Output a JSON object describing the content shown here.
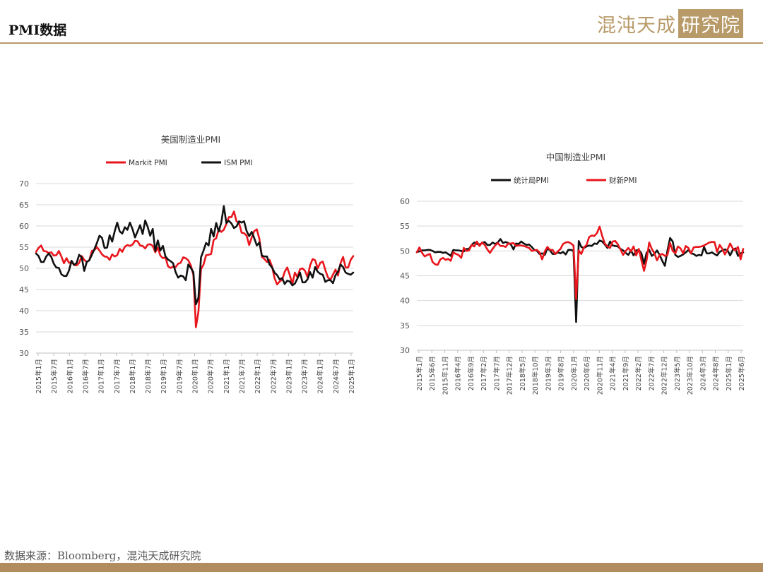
{
  "page": {
    "title": "PMI数据"
  },
  "logo": {
    "text_main": "混沌天成",
    "text_box": "研究院"
  },
  "footer": {
    "source": "数据来源：Bloomberg，混沌天成研究院"
  },
  "colors": {
    "accent": "#b89a68",
    "footer": "#b08c5e",
    "series_red": "#e8161c",
    "series_black": "#111111"
  },
  "chart_data": [
    {
      "type": "line",
      "title": "美国制造业PMI",
      "ylim": [
        30,
        70
      ],
      "yticks": [
        30,
        35,
        40,
        45,
        50,
        55,
        60,
        65,
        70
      ],
      "x_start": "2015-01",
      "x_end": "2025-06",
      "xtick_labels": [
        "2015年1月",
        "2015年7月",
        "2016年1月",
        "2016年7月",
        "2017年1月",
        "2017年7月",
        "2018年1月",
        "2018年7月",
        "2019年1月",
        "2019年7月",
        "2020年1月",
        "2020年7月",
        "2021年1月",
        "2021年7月",
        "2022年1月",
        "2022年7月",
        "2023年1月",
        "2023年7月",
        "2024年1月",
        "2024年7月",
        "2025年1月"
      ],
      "grid": true,
      "legend": "top",
      "series": [
        {
          "name": "Markit PMI",
          "color": "#e8161c",
          "values": [
            53.9,
            54.8,
            55.4,
            54.1,
            54.0,
            53.6,
            53.8,
            53.0,
            53.1,
            54.1,
            52.8,
            51.2,
            52.4,
            51.3,
            51.5,
            50.8,
            50.7,
            51.3,
            52.9,
            52.0,
            51.5,
            51.9,
            54.1,
            54.3,
            55.0,
            54.2,
            53.3,
            52.8,
            52.7,
            52.0,
            53.3,
            52.8,
            53.1,
            54.6,
            53.9,
            55.1,
            55.5,
            55.3,
            55.6,
            56.5,
            56.4,
            55.4,
            55.3,
            54.7,
            55.6,
            55.7,
            55.3,
            53.8,
            54.9,
            53.0,
            52.4,
            52.6,
            50.5,
            50.1,
            50.4,
            50.3,
            51.1,
            51.3,
            52.6,
            52.4,
            51.9,
            50.7,
            48.5,
            36.1,
            39.8,
            49.8,
            50.9,
            53.1,
            53.2,
            53.4,
            56.7,
            57.1,
            59.2,
            58.6,
            59.1,
            60.5,
            62.1,
            62.1,
            63.4,
            61.1,
            60.7,
            58.4,
            58.3,
            57.7,
            55.5,
            57.3,
            58.8,
            59.2,
            57.0,
            52.7,
            52.2,
            51.5,
            52.0,
            50.4,
            47.7,
            46.2,
            46.9,
            47.3,
            49.2,
            50.2,
            48.4,
            46.3,
            49.0,
            47.9,
            49.8,
            50.0,
            49.4,
            47.9,
            50.7,
            52.2,
            51.9,
            50.0,
            51.3,
            51.6,
            49.6,
            47.9,
            47.3,
            48.5,
            49.7,
            48.3,
            51.2,
            52.7,
            50.2,
            50.2,
            52.0,
            52.9
          ]
        },
        {
          "name": "ISM PMI",
          "color": "#111111",
          "values": [
            53.5,
            52.9,
            51.5,
            51.5,
            52.8,
            53.5,
            52.7,
            51.1,
            50.2,
            50.1,
            48.6,
            48.2,
            48.2,
            49.5,
            51.8,
            50.8,
            51.3,
            53.2,
            52.6,
            49.4,
            51.5,
            51.9,
            53.2,
            54.5,
            56.0,
            57.7,
            57.2,
            54.8,
            54.9,
            57.8,
            56.3,
            58.8,
            60.8,
            58.7,
            58.2,
            59.7,
            59.1,
            60.8,
            59.3,
            57.3,
            58.7,
            60.2,
            58.1,
            61.3,
            59.8,
            57.7,
            59.3,
            54.1,
            56.6,
            54.2,
            55.3,
            52.8,
            52.1,
            51.7,
            51.2,
            49.1,
            47.8,
            48.3,
            48.1,
            47.2,
            50.9,
            50.1,
            49.1,
            41.5,
            43.1,
            52.6,
            54.2,
            56.0,
            55.4,
            59.3,
            57.5,
            60.7,
            58.7,
            60.8,
            64.7,
            60.7,
            61.2,
            60.6,
            59.5,
            59.9,
            61.1,
            60.8,
            61.1,
            58.8,
            57.6,
            58.6,
            57.1,
            55.4,
            56.1,
            53.0,
            52.8,
            52.8,
            50.9,
            50.2,
            49.0,
            48.4,
            47.4,
            47.7,
            46.3,
            47.1,
            46.9,
            46.0,
            46.4,
            47.6,
            49.0,
            46.7,
            46.7,
            47.4,
            49.1,
            47.8,
            50.3,
            49.2,
            48.7,
            48.5,
            46.8,
            47.2,
            47.2,
            46.5,
            48.4,
            49.2,
            50.9,
            50.3,
            49.0,
            48.7,
            48.5,
            49.0
          ]
        }
      ]
    },
    {
      "type": "line",
      "title": "中国制造业PMI",
      "ylim": [
        30,
        60
      ],
      "yticks": [
        30,
        35,
        40,
        45,
        50,
        55,
        60
      ],
      "x_start": "2015-01",
      "x_end": "2025-06",
      "xtick_labels": [
        "2015年1月",
        "2015年6月",
        "2015年11月",
        "2016年4月",
        "2016年9月",
        "2017年2月",
        "2017年7月",
        "2017年12月",
        "2018年5月",
        "2018年10月",
        "2019年3月",
        "2019年8月",
        "2020年1月",
        "2020年6月",
        "2020年11月",
        "2021年4月",
        "2021年9月",
        "2022年2月",
        "2022年7月",
        "2022年12月",
        "2023年5月",
        "2023年10月",
        "2024年3月",
        "2024年8月",
        "2025年1月",
        "2025年6月"
      ],
      "grid": true,
      "legend": "top",
      "series": [
        {
          "name": "统计局PMI",
          "color": "#111111",
          "values": [
            49.8,
            49.9,
            50.1,
            50.1,
            50.2,
            50.2,
            50.0,
            49.7,
            49.8,
            49.8,
            49.6,
            49.7,
            49.4,
            49.0,
            50.2,
            50.1,
            50.1,
            50.0,
            49.9,
            50.4,
            50.4,
            51.2,
            51.7,
            51.4,
            51.3,
            51.6,
            51.8,
            51.2,
            51.2,
            51.7,
            51.4,
            51.7,
            52.4,
            51.6,
            51.8,
            51.6,
            51.3,
            50.3,
            51.5,
            51.4,
            51.9,
            51.5,
            51.2,
            51.3,
            50.8,
            50.2,
            50.0,
            49.4,
            49.5,
            49.2,
            50.5,
            50.1,
            49.4,
            49.4,
            49.7,
            49.5,
            49.8,
            49.3,
            50.2,
            50.2,
            50.0,
            35.7,
            52.0,
            50.8,
            50.6,
            50.9,
            51.1,
            51.0,
            51.5,
            51.4,
            52.1,
            51.9,
            51.3,
            50.6,
            51.9,
            51.1,
            51.0,
            50.9,
            50.4,
            50.1,
            49.6,
            49.2,
            50.1,
            49.1,
            50.1,
            50.2,
            49.5,
            47.4,
            49.6,
            50.2,
            49.0,
            49.4,
            50.1,
            49.2,
            48.0,
            47.0,
            50.1,
            52.6,
            51.9,
            49.2,
            48.8,
            49.0,
            49.3,
            49.7,
            50.2,
            49.5,
            49.4,
            49.0,
            49.2,
            49.1,
            50.8,
            49.5,
            49.5,
            49.7,
            49.4,
            49.1,
            49.8,
            50.1,
            50.3,
            50.1,
            49.1,
            50.2,
            50.5,
            49.0,
            49.5,
            49.7
          ]
        },
        {
          "name": "财新PMI",
          "color": "#e8161c",
          "values": [
            49.7,
            50.7,
            49.6,
            48.9,
            49.2,
            49.4,
            47.8,
            47.3,
            47.2,
            48.3,
            48.6,
            48.2,
            48.4,
            48.0,
            49.7,
            49.4,
            49.2,
            48.6,
            50.6,
            50.0,
            50.1,
            51.2,
            50.9,
            51.9,
            51.0,
            51.7,
            51.2,
            50.3,
            49.6,
            50.4,
            51.1,
            51.6,
            51.0,
            51.0,
            50.8,
            51.5,
            51.5,
            51.6,
            51.0,
            51.1,
            51.1,
            51.0,
            50.8,
            50.6,
            50.0,
            50.1,
            50.2,
            49.7,
            48.3,
            49.9,
            50.8,
            50.2,
            50.2,
            49.4,
            49.9,
            50.4,
            51.4,
            51.7,
            51.8,
            51.5,
            51.1,
            40.3,
            50.1,
            49.4,
            50.7,
            51.2,
            52.8,
            53.1,
            53.0,
            53.6,
            54.9,
            53.0,
            51.5,
            50.9,
            50.6,
            51.9,
            52.0,
            51.3,
            50.3,
            49.2,
            50.0,
            50.6,
            49.9,
            50.9,
            49.1,
            50.4,
            48.1,
            46.0,
            48.1,
            51.7,
            50.4,
            49.5,
            48.1,
            49.2,
            49.4,
            49.0,
            49.2,
            51.6,
            50.0,
            49.5,
            50.9,
            50.5,
            49.5,
            51.0,
            50.6,
            49.5,
            50.7,
            50.8,
            50.8,
            50.9,
            51.1,
            51.4,
            51.7,
            51.8,
            51.8,
            49.8,
            51.2,
            50.4,
            49.3,
            50.3,
            51.5,
            50.5,
            50.1,
            50.8,
            48.3,
            50.4
          ]
        }
      ]
    }
  ]
}
